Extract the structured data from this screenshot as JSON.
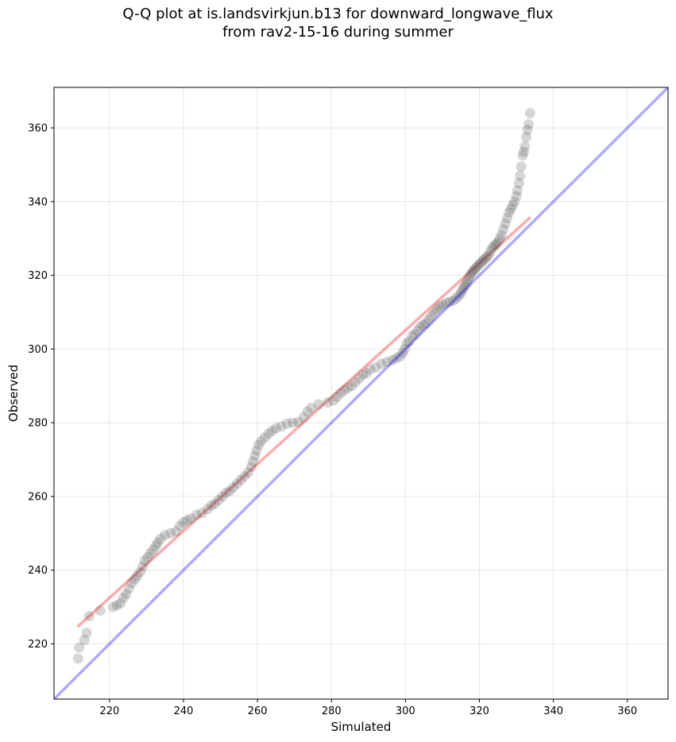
{
  "chart_data": {
    "type": "scatter",
    "title_line1": "Q-Q plot at is.landsvirkjun.b13 for downward_longwave_flux",
    "title_line2": "from rav2-15-16 during summer",
    "xlabel": "Simulated",
    "ylabel": "Observed",
    "xlim": [
      205,
      371
    ],
    "ylim": [
      205,
      371
    ],
    "xticks": [
      220,
      240,
      260,
      280,
      300,
      320,
      340,
      360
    ],
    "yticks": [
      220,
      240,
      260,
      280,
      300,
      320,
      340,
      360
    ],
    "grid": true,
    "identity_line": {
      "name": "1:1 line",
      "color": "#0000ff",
      "from": [
        205,
        205
      ],
      "to": [
        371,
        371
      ]
    },
    "fit_line": {
      "name": "linear fit",
      "color": "#ff0000",
      "from": [
        211.3,
        224.6
      ],
      "to": [
        333.8,
        335.8
      ]
    },
    "point_color": "#444444",
    "points": [
      [
        211.5,
        216
      ],
      [
        211.8,
        219
      ],
      [
        213.2,
        221
      ],
      [
        213.8,
        223
      ],
      [
        214.5,
        227.5
      ],
      [
        217.5,
        229
      ],
      [
        221,
        230
      ],
      [
        222,
        230.5
      ],
      [
        223,
        231
      ],
      [
        223.8,
        232.5
      ],
      [
        224.5,
        233.5
      ],
      [
        225.3,
        235
      ],
      [
        226,
        236.5
      ],
      [
        226.8,
        237.5
      ],
      [
        227.5,
        238.5
      ],
      [
        228.3,
        239.5
      ],
      [
        229,
        241
      ],
      [
        229.5,
        242.5
      ],
      [
        230.3,
        243.5
      ],
      [
        231,
        244.5
      ],
      [
        231.8,
        245.5
      ],
      [
        232.5,
        246.5
      ],
      [
        233,
        247.5
      ],
      [
        233.8,
        248.5
      ],
      [
        235,
        249.5
      ],
      [
        236.5,
        250
      ],
      [
        238,
        250.5
      ],
      [
        239,
        252
      ],
      [
        240,
        253
      ],
      [
        241,
        253.5
      ],
      [
        242,
        254
      ],
      [
        243.5,
        255
      ],
      [
        245,
        255.5
      ],
      [
        246.5,
        256.5
      ],
      [
        247.5,
        257.5
      ],
      [
        248.5,
        258
      ],
      [
        249.5,
        259
      ],
      [
        250.5,
        260
      ],
      [
        251.5,
        261
      ],
      [
        252.5,
        261.5
      ],
      [
        253.5,
        262.5
      ],
      [
        254.5,
        263.5
      ],
      [
        255.5,
        264.5
      ],
      [
        256.5,
        265.5
      ],
      [
        257.5,
        266.5
      ],
      [
        258.3,
        268
      ],
      [
        258.8,
        269.5
      ],
      [
        259.3,
        271
      ],
      [
        259.8,
        272.5
      ],
      [
        260.3,
        274
      ],
      [
        261,
        275
      ],
      [
        262,
        276
      ],
      [
        263,
        277
      ],
      [
        264,
        277.8
      ],
      [
        265,
        278.5
      ],
      [
        266.5,
        279
      ],
      [
        268,
        279.8
      ],
      [
        269.5,
        280
      ],
      [
        271,
        280.2
      ],
      [
        272.5,
        281.5
      ],
      [
        273.5,
        283
      ],
      [
        274.5,
        284
      ],
      [
        276.5,
        285
      ],
      [
        279,
        285.5
      ],
      [
        280.5,
        286
      ],
      [
        281.5,
        287
      ],
      [
        282.5,
        288
      ],
      [
        283.5,
        288.8
      ],
      [
        284.5,
        289.5
      ],
      [
        285.5,
        290
      ],
      [
        286.5,
        291
      ],
      [
        287.5,
        292
      ],
      [
        288.5,
        293
      ],
      [
        289.5,
        293.5
      ],
      [
        290.5,
        294.5
      ],
      [
        292,
        295
      ],
      [
        293.5,
        296
      ],
      [
        295,
        296.5
      ],
      [
        296.5,
        297
      ],
      [
        297.5,
        297.5
      ],
      [
        298.5,
        298
      ],
      [
        299.3,
        299
      ],
      [
        299.8,
        300
      ],
      [
        300.3,
        301.5
      ],
      [
        301,
        302
      ],
      [
        301.8,
        303.5
      ],
      [
        302.5,
        304
      ],
      [
        303.3,
        305
      ],
      [
        304,
        306
      ],
      [
        304.8,
        306.5
      ],
      [
        305.5,
        307
      ],
      [
        306.3,
        308
      ],
      [
        307,
        309
      ],
      [
        307.8,
        310
      ],
      [
        308.5,
        310.8
      ],
      [
        309.3,
        311.5
      ],
      [
        310,
        312
      ],
      [
        311,
        312.5
      ],
      [
        312,
        312.8
      ],
      [
        313,
        313.2
      ],
      [
        313.8,
        313.8
      ],
      [
        314.5,
        314.5
      ],
      [
        315,
        315.2
      ],
      [
        315.4,
        316
      ],
      [
        315.8,
        316.8
      ],
      [
        316.2,
        317.5
      ],
      [
        316.6,
        318.2
      ],
      [
        317,
        319
      ],
      [
        317.4,
        319.8
      ],
      [
        317.8,
        320.5
      ],
      [
        318.2,
        321
      ],
      [
        318.6,
        321.5
      ],
      [
        319,
        322
      ],
      [
        319.5,
        322.5
      ],
      [
        320,
        323
      ],
      [
        320.5,
        323.5
      ],
      [
        321,
        324
      ],
      [
        321.5,
        324.5
      ],
      [
        322,
        325
      ],
      [
        322.5,
        325.5
      ],
      [
        323,
        326.5
      ],
      [
        323.5,
        327.5
      ],
      [
        324,
        328
      ],
      [
        324.5,
        328.5
      ],
      [
        325,
        329
      ],
      [
        325.5,
        330
      ],
      [
        326,
        331
      ],
      [
        326.5,
        332.5
      ],
      [
        327,
        334
      ],
      [
        327.5,
        335.5
      ],
      [
        328,
        337
      ],
      [
        328.5,
        338
      ],
      [
        329,
        339
      ],
      [
        329.5,
        340
      ],
      [
        330,
        341.5
      ],
      [
        330.3,
        343
      ],
      [
        330.7,
        345
      ],
      [
        331,
        347
      ],
      [
        331.3,
        349.5
      ],
      [
        331.7,
        352.5
      ],
      [
        332,
        353.5
      ],
      [
        332.3,
        355
      ],
      [
        332.7,
        357.5
      ],
      [
        333,
        359.5
      ],
      [
        333.3,
        361
      ],
      [
        333.7,
        364
      ]
    ]
  }
}
